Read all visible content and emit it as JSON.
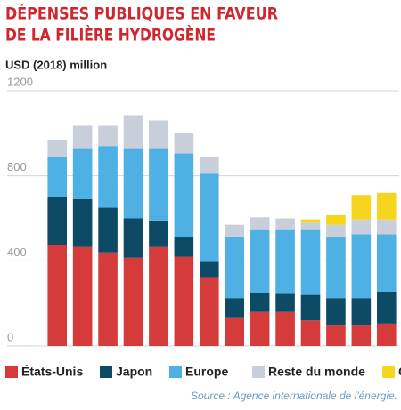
{
  "chart_data": {
    "type": "stacked_bar",
    "title": [
      "DÉPENSES PUBLIQUES EN FAVEUR",
      "DE LA FILIÈRE HYDROGÈNE"
    ],
    "subtitle": "USD (2018) million",
    "source": "Source : Agence internationale de l'énergie.",
    "categories": [
      null,
      null,
      null,
      null,
      null,
      null,
      null,
      null,
      null,
      null,
      null,
      null,
      null,
      null
    ],
    "series": [
      {
        "name": "États-Unis",
        "color": "#d63b3b",
        "values": [
          475,
          465,
          440,
          415,
          465,
          420,
          320,
          135,
          160,
          160,
          120,
          100,
          100,
          105
        ]
      },
      {
        "name": "Japon",
        "color": "#0d4a66",
        "values": [
          225,
          225,
          210,
          185,
          125,
          90,
          75,
          90,
          90,
          85,
          120,
          125,
          125,
          150
        ]
      },
      {
        "name": "Europe",
        "color": "#4fb0e3",
        "values": [
          190,
          240,
          290,
          330,
          340,
          395,
          415,
          290,
          295,
          300,
          305,
          285,
          300,
          270
        ]
      },
      {
        "name": "Reste du monde",
        "color": "#c8ceda",
        "values": [
          80,
          105,
          95,
          155,
          130,
          95,
          80,
          55,
          60,
          55,
          35,
          60,
          70,
          70
        ]
      },
      {
        "name": "Chine",
        "color": "#f7d51e",
        "values": [
          0,
          0,
          0,
          0,
          0,
          0,
          0,
          0,
          0,
          0,
          15,
          45,
          115,
          125
        ]
      }
    ],
    "ylim": [
      0,
      1200
    ],
    "yticks": [
      0,
      400,
      800,
      1200
    ],
    "grid": true
  }
}
